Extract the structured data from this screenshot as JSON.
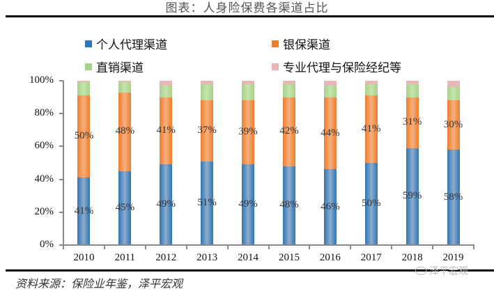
{
  "header": {
    "title": "图表：人身险保费各渠道占比"
  },
  "legend": {
    "items": [
      {
        "label": "个人代理渠道",
        "color": "#2e75b6"
      },
      {
        "label": "银保渠道",
        "color": "#ed7d31"
      },
      {
        "label": "直销渠道",
        "color": "#a9d18e"
      },
      {
        "label": "专业代理与保险经纪等",
        "color": "#e6b9b8"
      }
    ]
  },
  "footer": {
    "source": "资料来源：保险业年鉴，泽平宏观",
    "watermark": "泽平宏观"
  },
  "chart_data": {
    "type": "bar",
    "stacked": true,
    "title": "图表：人身险保费各渠道占比",
    "xlabel": "",
    "ylabel": "",
    "ylim": [
      0,
      100
    ],
    "y_ticks": [
      "0%",
      "20%",
      "40%",
      "60%",
      "80%",
      "100%"
    ],
    "categories": [
      "2010",
      "2011",
      "2012",
      "2013",
      "2014",
      "2015",
      "2016",
      "2017",
      "2018",
      "2019"
    ],
    "series": [
      {
        "name": "个人代理渠道",
        "color": "#2e75b6",
        "values": [
          41,
          45,
          49,
          51,
          49,
          48,
          46,
          50,
          59,
          58
        ],
        "labels": [
          "41%",
          "45%",
          "49%",
          "51%",
          "49%",
          "48%",
          "46%",
          "50%",
          "59%",
          "58%"
        ]
      },
      {
        "name": "银保渠道",
        "color": "#ed7d31",
        "values": [
          50,
          48,
          41,
          37,
          39,
          42,
          44,
          41,
          31,
          30
        ],
        "labels": [
          "50%",
          "48%",
          "41%",
          "37%",
          "39%",
          "42%",
          "44%",
          "41%",
          "31%",
          "30%"
        ]
      },
      {
        "name": "直销渠道",
        "color": "#a9d18e",
        "values": [
          8,
          6,
          7,
          10,
          10,
          8,
          7,
          7,
          8,
          8
        ]
      },
      {
        "name": "专业代理与保险经纪等",
        "color": "#e6b9b8",
        "values": [
          1,
          1,
          3,
          2,
          2,
          2,
          3,
          2,
          2,
          4
        ]
      }
    ],
    "legend_position": "top",
    "grid": false
  }
}
